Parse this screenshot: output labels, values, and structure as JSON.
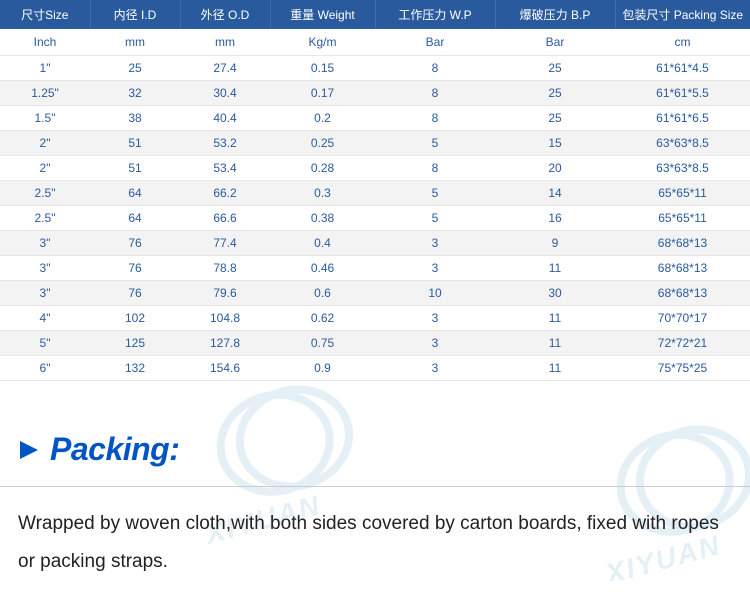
{
  "table": {
    "header_bg": "#2a5a9e",
    "header_fg": "#ffffff",
    "cell_fg": "#2a5a9e",
    "stripe_bg": "#f3f3f3",
    "columns": [
      "尺寸Size",
      "内径 I.D",
      "外径 O.D",
      "重量 Weight",
      "工作压力 W.P",
      "爆破压力 B.P",
      "包装尺寸 Packing Size"
    ],
    "units": [
      "Inch",
      "mm",
      "mm",
      "Kg/m",
      "Bar",
      "Bar",
      "cm"
    ],
    "rows": [
      [
        "1\"",
        "25",
        "27.4",
        "0.15",
        "8",
        "25",
        "61*61*4.5"
      ],
      [
        "1.25\"",
        "32",
        "30.4",
        "0.17",
        "8",
        "25",
        "61*61*5.5"
      ],
      [
        "1.5\"",
        "38",
        "40.4",
        "0.2",
        "8",
        "25",
        "61*61*6.5"
      ],
      [
        "2\"",
        "51",
        "53.2",
        "0.25",
        "5",
        "15",
        "63*63*8.5"
      ],
      [
        "2\"",
        "51",
        "53.4",
        "0.28",
        "8",
        "20",
        "63*63*8.5"
      ],
      [
        "2.5\"",
        "64",
        "66.2",
        "0.3",
        "5",
        "14",
        "65*65*11"
      ],
      [
        "2.5\"",
        "64",
        "66.6",
        "0.38",
        "5",
        "16",
        "65*65*11"
      ],
      [
        "3\"",
        "76",
        "77.4",
        "0.4",
        "3",
        "9",
        "68*68*13"
      ],
      [
        "3\"",
        "76",
        "78.8",
        "0.46",
        "3",
        "11",
        "68*68*13"
      ],
      [
        "3\"",
        "76",
        "79.6",
        "0.6",
        "10",
        "30",
        "68*68*13"
      ],
      [
        "4\"",
        "102",
        "104.8",
        "0.62",
        "3",
        "11",
        "70*70*17"
      ],
      [
        "5\"",
        "125",
        "127.8",
        "0.75",
        "3",
        "11",
        "72*72*21"
      ],
      [
        "6\"",
        "132",
        "154.6",
        "0.9",
        "3",
        "11",
        "75*75*25"
      ]
    ],
    "col_widths": [
      "12%",
      "12%",
      "12%",
      "14%",
      "16%",
      "16%",
      "18%"
    ]
  },
  "heading": {
    "label": "Packing:",
    "color": "#0055c4",
    "triangle_color": "#0055c4",
    "fontsize": 32
  },
  "body_text": "Wrapped by woven cloth,with both sides covered by carton boards, fixed with ropes or packing straps.",
  "watermark": {
    "text": "XIYUAN",
    "color": "#2a7fb8",
    "opacity": 0.12
  }
}
